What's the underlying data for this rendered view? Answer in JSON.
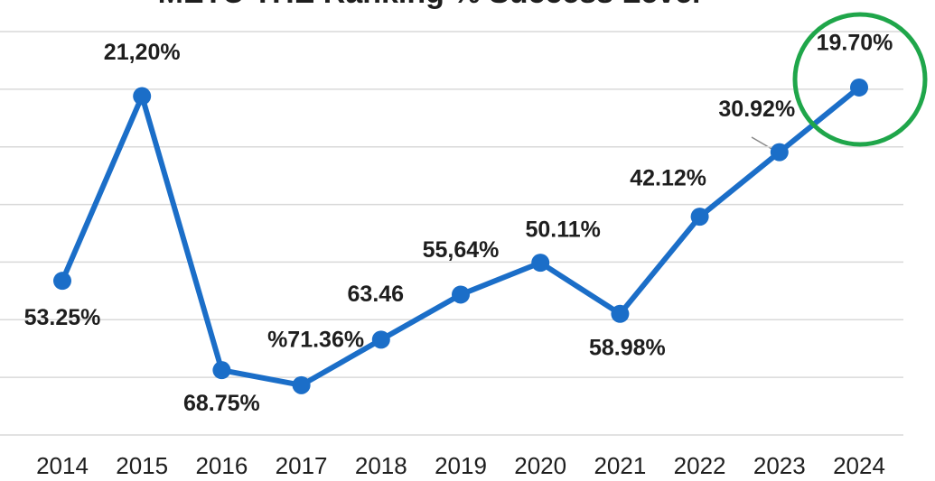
{
  "chart_data": {
    "type": "line",
    "title": "METU THE Ranking % Success Level",
    "categories": [
      "2014",
      "2015",
      "2016",
      "2017",
      "2018",
      "2019",
      "2020",
      "2021",
      "2022",
      "2023",
      "2024"
    ],
    "series": [
      {
        "name": "Success Level",
        "color": "#1b6ec8",
        "values": [
          53.25,
          21.2,
          68.75,
          71.36,
          63.46,
          55.64,
          50.11,
          58.98,
          42.12,
          30.92,
          19.7
        ],
        "value_labels": [
          "53.25%",
          "21,20%",
          "68.75%",
          "%71.36%",
          "63.46",
          "55,64%",
          "50.11%",
          "58.98%",
          "42.12%",
          "30.92%",
          "19.70%"
        ]
      }
    ],
    "ylim": [
      80,
      10
    ],
    "yticks": [
      10,
      20,
      30,
      40,
      50,
      60,
      70,
      80
    ],
    "grid": true
  }
}
